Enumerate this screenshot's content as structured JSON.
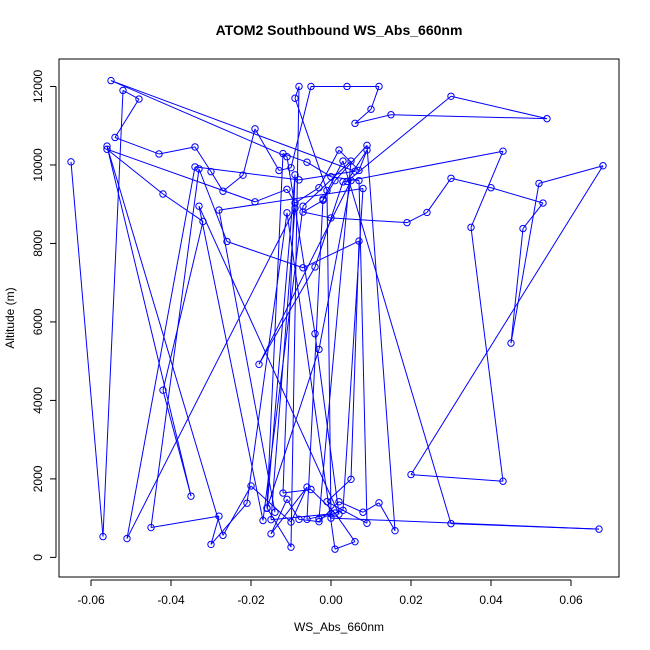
{
  "chart_data": {
    "type": "line",
    "title": "ATOM2 Southbound WS_Abs_660nm",
    "xlabel": "WS_Abs_660nm",
    "ylabel": "Altitude (m)",
    "xlim": [
      -0.068,
      0.072
    ],
    "ylim": [
      -500,
      12700
    ],
    "xticks": [
      -0.06,
      -0.04,
      -0.02,
      0.0,
      0.02,
      0.04,
      0.06
    ],
    "xtick_labels": [
      "-0.06",
      "-0.04",
      "-0.02",
      "0.00",
      "0.02",
      "0.04",
      "0.06"
    ],
    "yticks": [
      0,
      2000,
      4000,
      6000,
      8000,
      10000,
      12000
    ],
    "ytick_labels": [
      "0",
      "2000",
      "4000",
      "6000",
      "8000",
      "10000",
      "12000"
    ],
    "grid": false,
    "marker": "open-circle",
    "series_color": "#0000ff",
    "points": [
      [
        -0.065,
        10080
      ],
      [
        -0.057,
        530
      ],
      [
        -0.052,
        11900
      ],
      [
        -0.048,
        11680
      ],
      [
        -0.054,
        10700
      ],
      [
        -0.043,
        10280
      ],
      [
        -0.034,
        10460
      ],
      [
        -0.03,
        9830
      ],
      [
        -0.027,
        9330
      ],
      [
        -0.022,
        9740
      ],
      [
        -0.019,
        10920
      ],
      [
        -0.013,
        9860
      ],
      [
        -0.01,
        9930
      ],
      [
        -0.005,
        12000
      ],
      [
        0.004,
        12000
      ],
      [
        0.012,
        12000
      ],
      [
        0.01,
        11420
      ],
      [
        0.006,
        11060
      ],
      [
        0.015,
        11280
      ],
      [
        0.054,
        11180
      ],
      [
        0.03,
        11750
      ],
      [
        0.004,
        9580
      ],
      [
        0.009,
        10380
      ],
      [
        0.007,
        9860
      ],
      [
        0.002,
        10380
      ],
      [
        -0.003,
        9420
      ],
      [
        -0.009,
        9030
      ],
      [
        -0.011,
        9380
      ],
      [
        -0.019,
        9060
      ],
      [
        -0.056,
        10400
      ],
      [
        -0.042,
        9260
      ],
      [
        -0.032,
        8560
      ],
      [
        -0.042,
        4260
      ],
      [
        -0.035,
        1560
      ],
      [
        -0.056,
        10480
      ],
      [
        -0.027,
        560
      ],
      [
        -0.02,
        1820
      ],
      [
        -0.01,
        900
      ],
      [
        -0.006,
        1790
      ],
      [
        -0.015,
        600
      ],
      [
        -0.011,
        1480
      ],
      [
        -0.008,
        970
      ],
      [
        -0.003,
        910
      ],
      [
        0.002,
        1420
      ],
      [
        0.008,
        1150
      ],
      [
        0.012,
        1390
      ],
      [
        0.016,
        680
      ],
      [
        0.009,
        10500
      ],
      [
        0.001,
        9600
      ],
      [
        -0.002,
        9100
      ],
      [
        -0.007,
        8800
      ],
      [
        0.0,
        8650
      ],
      [
        0.019,
        8530
      ],
      [
        0.024,
        8790
      ],
      [
        0.03,
        9660
      ],
      [
        0.04,
        9420
      ],
      [
        0.053,
        9030
      ],
      [
        0.048,
        8380
      ],
      [
        0.045,
        5460
      ],
      [
        0.052,
        9530
      ],
      [
        0.068,
        9980
      ],
      [
        0.02,
        2110
      ],
      [
        0.043,
        1940
      ],
      [
        0.035,
        8410
      ],
      [
        0.043,
        10350
      ],
      [
        0.003,
        9570
      ],
      [
        -0.004,
        7400
      ],
      [
        -0.018,
        4920
      ],
      [
        0.005,
        9600
      ],
      [
        -0.003,
        5300
      ],
      [
        -0.016,
        1250
      ],
      [
        -0.009,
        9750
      ],
      [
        -0.012,
        1640
      ],
      [
        -0.005,
        1730
      ],
      [
        0.001,
        1130
      ],
      [
        0.006,
        400
      ],
      [
        0.001,
        210
      ],
      [
        -0.011,
        8780
      ],
      [
        -0.021,
        1380
      ],
      [
        -0.03,
        330
      ],
      [
        -0.028,
        1050
      ],
      [
        -0.045,
        760
      ],
      [
        -0.033,
        9900
      ],
      [
        -0.026,
        8050
      ],
      [
        -0.007,
        7380
      ],
      [
        0.007,
        8060
      ],
      [
        0.005,
        1990
      ],
      [
        -0.001,
        1420
      ],
      [
        0.009,
        870
      ],
      [
        0.007,
        9600
      ],
      [
        0.0,
        9700
      ],
      [
        -0.006,
        10070
      ],
      [
        -0.012,
        10290
      ],
      [
        -0.016,
        1260
      ],
      [
        -0.01,
        260
      ],
      [
        -0.008,
        12000
      ],
      [
        -0.009,
        11700
      ],
      [
        -0.001,
        9350
      ],
      [
        0.0,
        1000
      ],
      [
        0.067,
        720
      ],
      [
        0.03,
        860
      ],
      [
        0.003,
        10100
      ],
      [
        -0.002,
        9130
      ],
      [
        -0.006,
        970
      ],
      [
        0.0,
        1110
      ],
      [
        -0.015,
        960
      ],
      [
        -0.009,
        8900
      ],
      [
        -0.051,
        480
      ],
      [
        -0.034,
        9950
      ],
      [
        -0.008,
        9620
      ],
      [
        0.006,
        9840
      ],
      [
        -0.055,
        12150
      ],
      [
        -0.011,
        10210
      ],
      [
        -0.004,
        5700
      ],
      [
        0.002,
        1100
      ],
      [
        -0.033,
        8950
      ],
      [
        -0.017,
        940
      ],
      [
        -0.007,
        8950
      ],
      [
        0.005,
        10100
      ],
      [
        -0.003,
        980
      ],
      [
        0.003,
        1200
      ],
      [
        0.008,
        9400
      ],
      [
        -0.028,
        8850
      ],
      [
        -0.014,
        1150
      ]
    ]
  }
}
